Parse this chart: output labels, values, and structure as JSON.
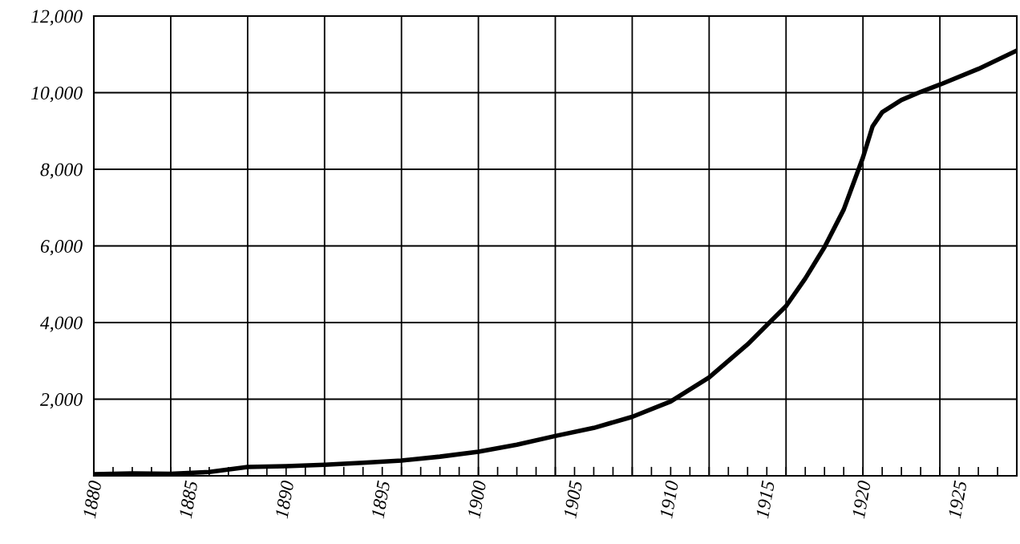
{
  "chart_data": {
    "type": "line",
    "x": [
      1880,
      1882,
      1884,
      1886,
      1888,
      1890,
      1892,
      1894,
      1896,
      1898,
      1900,
      1902,
      1904,
      1906,
      1908,
      1910,
      1912,
      1914,
      1915,
      1916,
      1917,
      1918,
      1919,
      1920,
      1920.5,
      1921,
      1922,
      1923,
      1924,
      1926,
      1928
    ],
    "series": [
      {
        "color": "#000000",
        "values": [
          40,
          60,
          50,
          100,
          230,
          250,
          290,
          340,
          400,
          500,
          630,
          810,
          1040,
          1250,
          1540,
          1940,
          2570,
          3430,
          3930,
          4430,
          5150,
          5970,
          6950,
          8310,
          9120,
          9490,
          9810,
          10020,
          10210,
          10620,
          11100
        ]
      }
    ],
    "xlim": [
      1880,
      1928
    ],
    "ylim": [
      0,
      12000
    ],
    "xticks": [
      1880,
      {
        "value": 1881,
        "label": null
      },
      {
        "value": 1882,
        "label": null
      },
      {
        "value": 1883,
        "label": null
      },
      {
        "value": 1884,
        "label": null
      },
      1885,
      {
        "value": 1886,
        "label": null
      },
      {
        "value": 1887,
        "label": null
      },
      {
        "value": 1888,
        "label": null
      },
      {
        "value": 1889,
        "label": null
      },
      1890,
      {
        "value": 1891,
        "label": null
      },
      {
        "value": 1892,
        "label": null
      },
      {
        "value": 1893,
        "label": null
      },
      {
        "value": 1894,
        "label": null
      },
      1895,
      {
        "value": 1896,
        "label": null
      },
      {
        "value": 1897,
        "label": null
      },
      {
        "value": 1898,
        "label": null
      },
      {
        "value": 1899,
        "label": null
      },
      1900,
      {
        "value": 1901,
        "label": null
      },
      {
        "value": 1902,
        "label": null
      },
      {
        "value": 1903,
        "label": null
      },
      {
        "value": 1904,
        "label": null
      },
      1905,
      {
        "value": 1906,
        "label": null
      },
      {
        "value": 1907,
        "label": null
      },
      {
        "value": 1908,
        "label": null
      },
      {
        "value": 1909,
        "label": null
      },
      1910,
      {
        "value": 1911,
        "label": null
      },
      {
        "value": 1912,
        "label": null
      },
      {
        "value": 1913,
        "label": null
      },
      {
        "value": 1914,
        "label": null
      },
      1915,
      {
        "value": 1916,
        "label": null
      },
      {
        "value": 1917,
        "label": null
      },
      {
        "value": 1918,
        "label": null
      },
      {
        "value": 1919,
        "label": null
      },
      1920,
      {
        "value": 1921,
        "label": null
      },
      {
        "value": 1922,
        "label": null
      },
      {
        "value": 1923,
        "label": null
      },
      {
        "value": 1924,
        "label": null
      },
      1925,
      {
        "value": 1926,
        "label": null
      },
      {
        "value": 1927,
        "label": null
      }
    ],
    "yticks": [
      {
        "value": 2000,
        "label": "2,000"
      },
      {
        "value": 4000,
        "label": "4,000"
      },
      {
        "value": 6000,
        "label": "6,000"
      },
      {
        "value": 8000,
        "label": "8,000"
      },
      {
        "value": 10000,
        "label": "10,000"
      },
      {
        "value": 12000,
        "label": "12,000"
      }
    ],
    "ref_lines": [
      {
        "axis": "x",
        "value": 1884,
        "color": "#000000"
      },
      {
        "axis": "x",
        "value": 1888,
        "color": "#000000"
      },
      {
        "axis": "x",
        "value": 1892,
        "color": "#000000"
      },
      {
        "axis": "x",
        "value": 1896,
        "color": "#000000"
      },
      {
        "axis": "x",
        "value": 1900,
        "color": "#000000"
      },
      {
        "axis": "x",
        "value": 1904,
        "color": "#000000"
      },
      {
        "axis": "x",
        "value": 1908,
        "color": "#000000"
      },
      {
        "axis": "x",
        "value": 1912,
        "color": "#000000"
      },
      {
        "axis": "x",
        "value": 1916,
        "color": "#000000"
      },
      {
        "axis": "x",
        "value": 1920,
        "color": "#000000"
      },
      {
        "axis": "x",
        "value": 1924,
        "color": "#000000"
      }
    ],
    "grid": "y",
    "marker": "none",
    "line_style": "solid"
  }
}
